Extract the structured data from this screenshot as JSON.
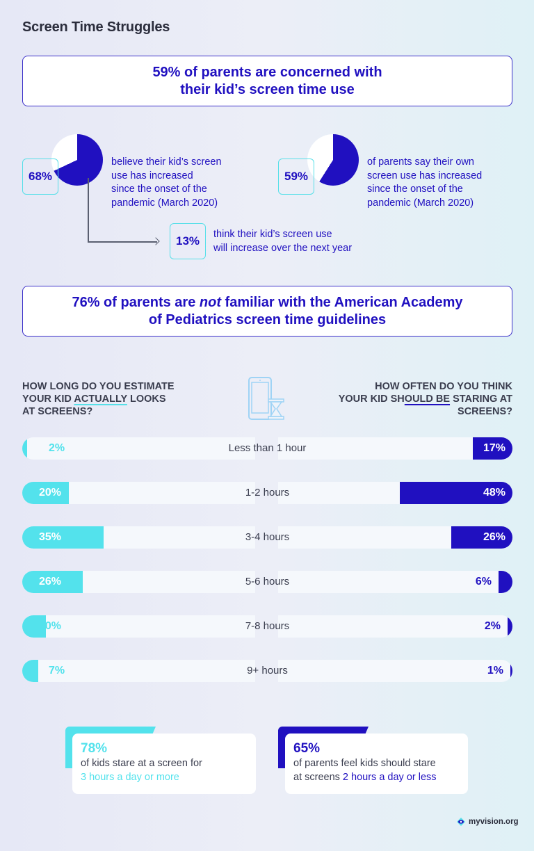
{
  "title": "Screen Time Struggles",
  "banner1": {
    "line1": "59% of parents are concerned with",
    "line2": "their kid’s screen time use"
  },
  "stat_kid_increase": {
    "value": "68%",
    "text_lines": [
      "believe their kid’s screen",
      "use has increased",
      "since the onset of the",
      "pandemic (March 2020)"
    ]
  },
  "stat_parent_increase": {
    "value": "59%",
    "text_lines": [
      "of parents say their own",
      "screen use has increased",
      "since the onset of the",
      "pandemic (March 2020)"
    ]
  },
  "stat_future_increase": {
    "value": "13%",
    "text_lines": [
      "think their kid’s screen use",
      "will increase over the next year"
    ]
  },
  "banner2": {
    "line1_pre": "76% of parents are ",
    "line1_em": "not",
    "line1_post": " familiar with the American Academy",
    "line2": "of Pediatrics screen time guidelines"
  },
  "questions": {
    "left": {
      "l1": "How long do you estimate",
      "l2_pre": "your kid ",
      "l2_ul": "actually",
      "l2_post": " looks",
      "l3": "at screens?"
    },
    "right": {
      "l1": "How often do you think",
      "l2_pre": "your kid sh",
      "l2_ul": "ould be",
      "l2_post": " staring at",
      "l3": "screens?"
    }
  },
  "colors": {
    "actual": "#53e2ec",
    "should": "#2010c0",
    "bar_track": "#f5f8fc",
    "text_dark": "#3a3d4e"
  },
  "chart_data": [
    {
      "type": "pie",
      "title": "Kid's screen use increased since pandemic onset",
      "categories": [
        "Increased",
        "Other"
      ],
      "values": [
        68,
        32
      ]
    },
    {
      "type": "pie",
      "title": "Parents' own screen use increased since pandemic onset",
      "categories": [
        "Increased",
        "Other"
      ],
      "values": [
        59,
        41
      ]
    },
    {
      "type": "bar",
      "orientation": "horizontal-diverging",
      "categories": [
        "Less than 1 hour",
        "1-2 hours",
        "3-4 hours",
        "5-6 hours",
        "7-8 hours",
        "9+ hours"
      ],
      "series": [
        {
          "name": "How long do you estimate your kid actually looks at screens?",
          "values": [
            2,
            20,
            35,
            26,
            10,
            7
          ],
          "color": "#53e2ec",
          "side": "left"
        },
        {
          "name": "How often do you think your kid should be staring at screens?",
          "values": [
            17,
            48,
            26,
            6,
            2,
            1
          ],
          "color": "#2010c0",
          "side": "right"
        }
      ],
      "xlim": [
        0,
        100
      ],
      "grid": false,
      "legend": "none (question headers above)"
    }
  ],
  "rows": [
    {
      "label": "Less than 1 hour",
      "actual": "2%",
      "should": "17%"
    },
    {
      "label": "1-2 hours",
      "actual": "20%",
      "should": "48%"
    },
    {
      "label": "3-4 hours",
      "actual": "35%",
      "should": "26%"
    },
    {
      "label": "5-6 hours",
      "actual": "26%",
      "should": "6%"
    },
    {
      "label": "7-8 hours",
      "actual": "10%",
      "should": "2%"
    },
    {
      "label": "9+ hours",
      "actual": "7%",
      "should": "1%"
    }
  ],
  "cards": {
    "left": {
      "value": "78%",
      "text": "of kids stare at a screen for",
      "highlight": "3 hours a day or more"
    },
    "right": {
      "value": "65%",
      "text_l1": "of parents feel kids should stare",
      "text_l2_pre": "at screens ",
      "highlight": "2 hours a day or less"
    }
  },
  "footer": {
    "logo_text": "myvision.org"
  }
}
